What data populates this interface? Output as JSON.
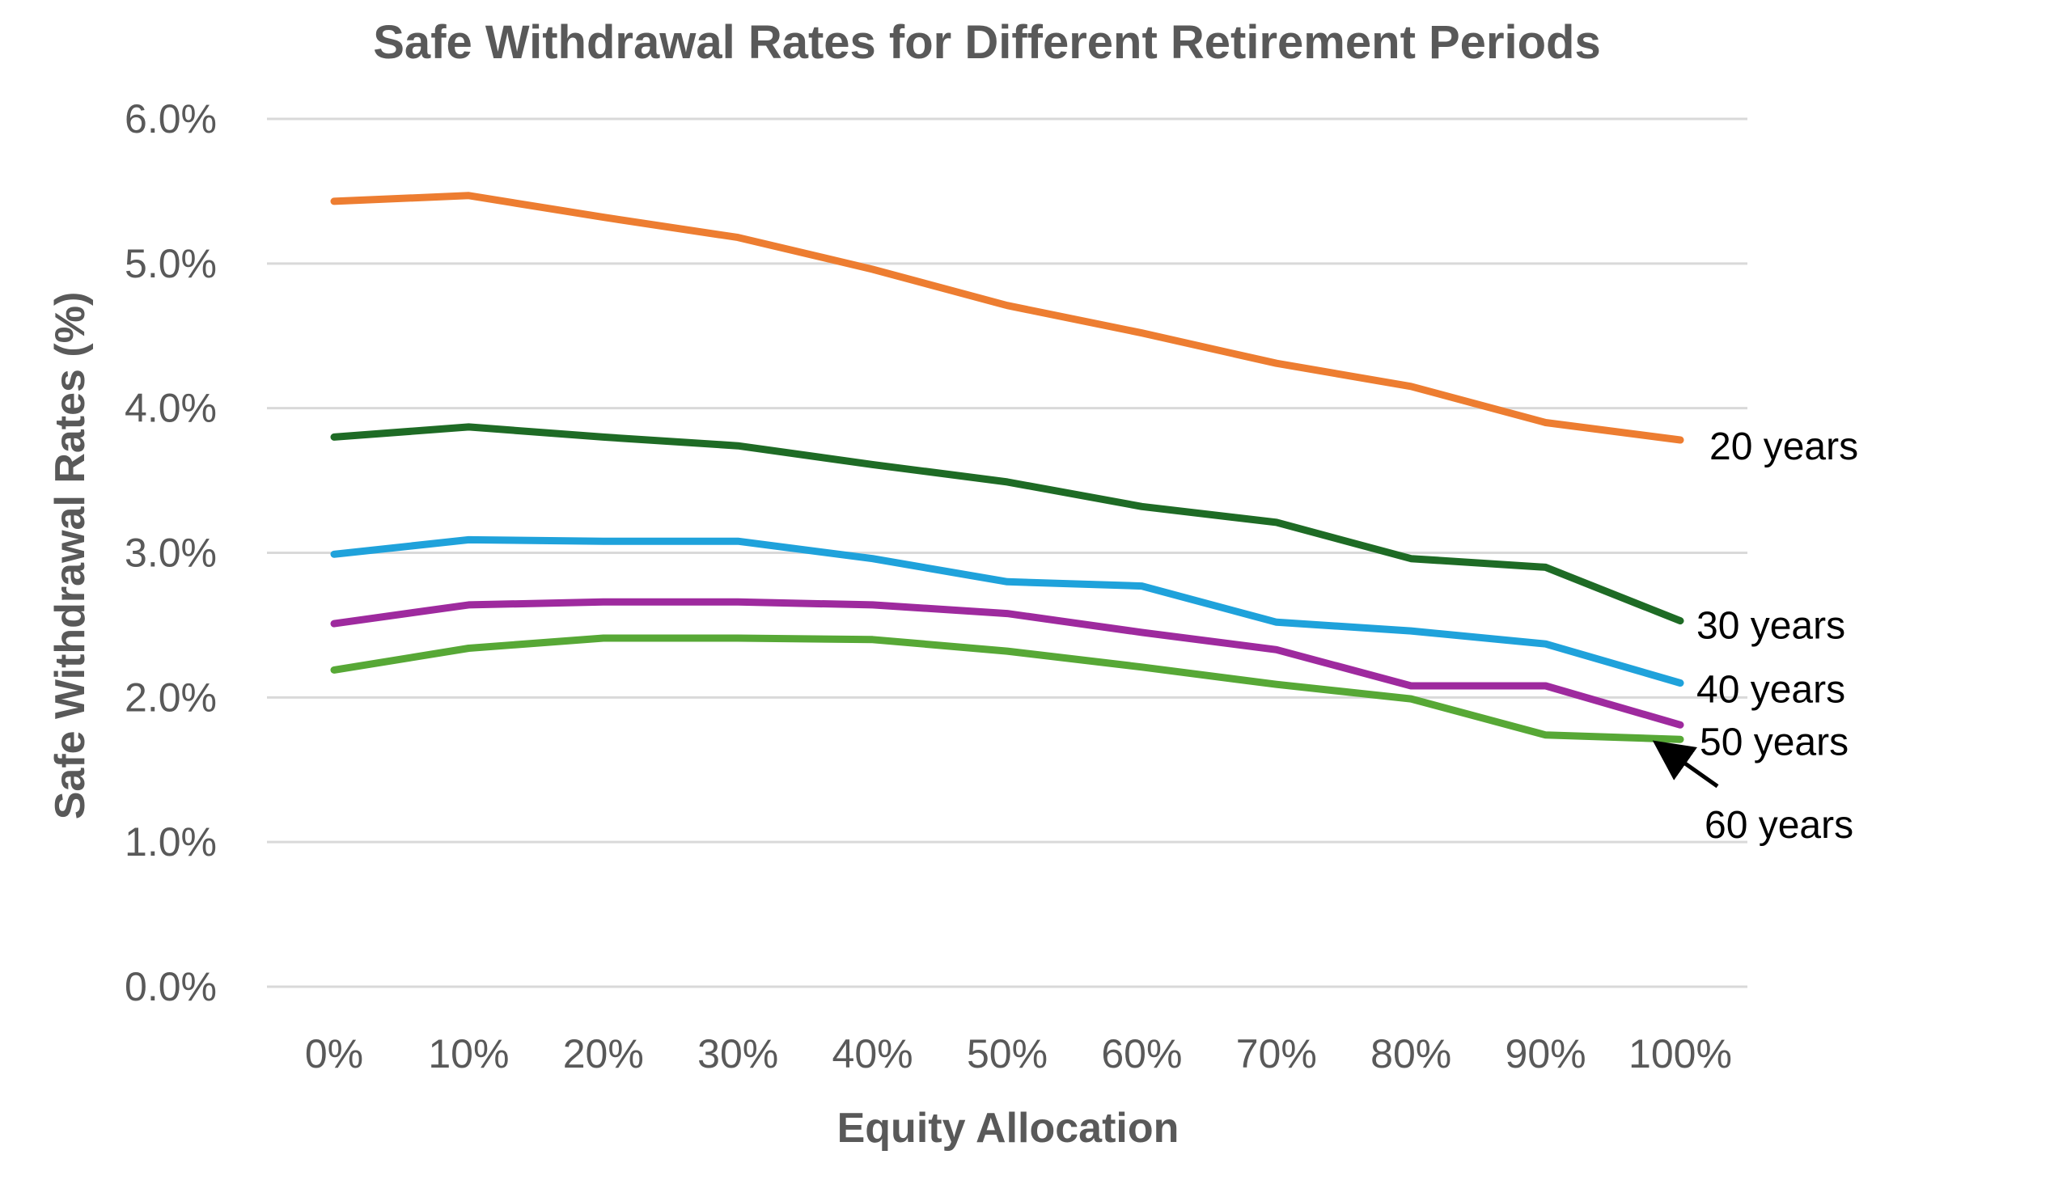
{
  "chart_data": {
    "type": "line",
    "title": "Safe Withdrawal Rates for Different Retirement Periods",
    "xlabel": "Equity Allocation",
    "ylabel": "Safe Withdrawal Rates (%)",
    "categories": [
      "0%",
      "10%",
      "20%",
      "30%",
      "40%",
      "50%",
      "60%",
      "70%",
      "80%",
      "90%",
      "100%"
    ],
    "ylim": [
      0,
      6
    ],
    "yticks": [
      0,
      1,
      2,
      3,
      4,
      5,
      6
    ],
    "ytick_labels": [
      "0.0%",
      "1.0%",
      "2.0%",
      "3.0%",
      "4.0%",
      "5.0%",
      "6.0%"
    ],
    "grid": "horizontal",
    "legend": "inline labels at right end of lines",
    "series": [
      {
        "name": "20 years",
        "color": "#ED7D31",
        "values": [
          5.43,
          5.47,
          5.32,
          5.18,
          4.96,
          4.71,
          4.52,
          4.31,
          4.15,
          3.9,
          3.78
        ]
      },
      {
        "name": "30 years",
        "color": "#1E6B25",
        "values": [
          3.8,
          3.87,
          3.8,
          3.74,
          3.61,
          3.49,
          3.32,
          3.21,
          2.96,
          2.9,
          2.53
        ]
      },
      {
        "name": "40 years",
        "color": "#1FA2DB",
        "values": [
          2.99,
          3.09,
          3.08,
          3.08,
          2.96,
          2.8,
          2.77,
          2.52,
          2.46,
          2.37,
          2.1
        ]
      },
      {
        "name": "50 years",
        "color": "#9E2A9E",
        "values": [
          2.51,
          2.64,
          2.66,
          2.66,
          2.64,
          2.58,
          2.45,
          2.33,
          2.08,
          2.08,
          1.81
        ]
      },
      {
        "name": "60 years",
        "color": "#57A836",
        "values": [
          2.19,
          2.34,
          2.41,
          2.41,
          2.4,
          2.32,
          2.21,
          2.09,
          1.99,
          1.74,
          1.71
        ]
      }
    ],
    "annotations": [
      {
        "text": "60 years",
        "type": "arrow",
        "points_to_series": "60 years",
        "at_category": "100%"
      }
    ]
  }
}
